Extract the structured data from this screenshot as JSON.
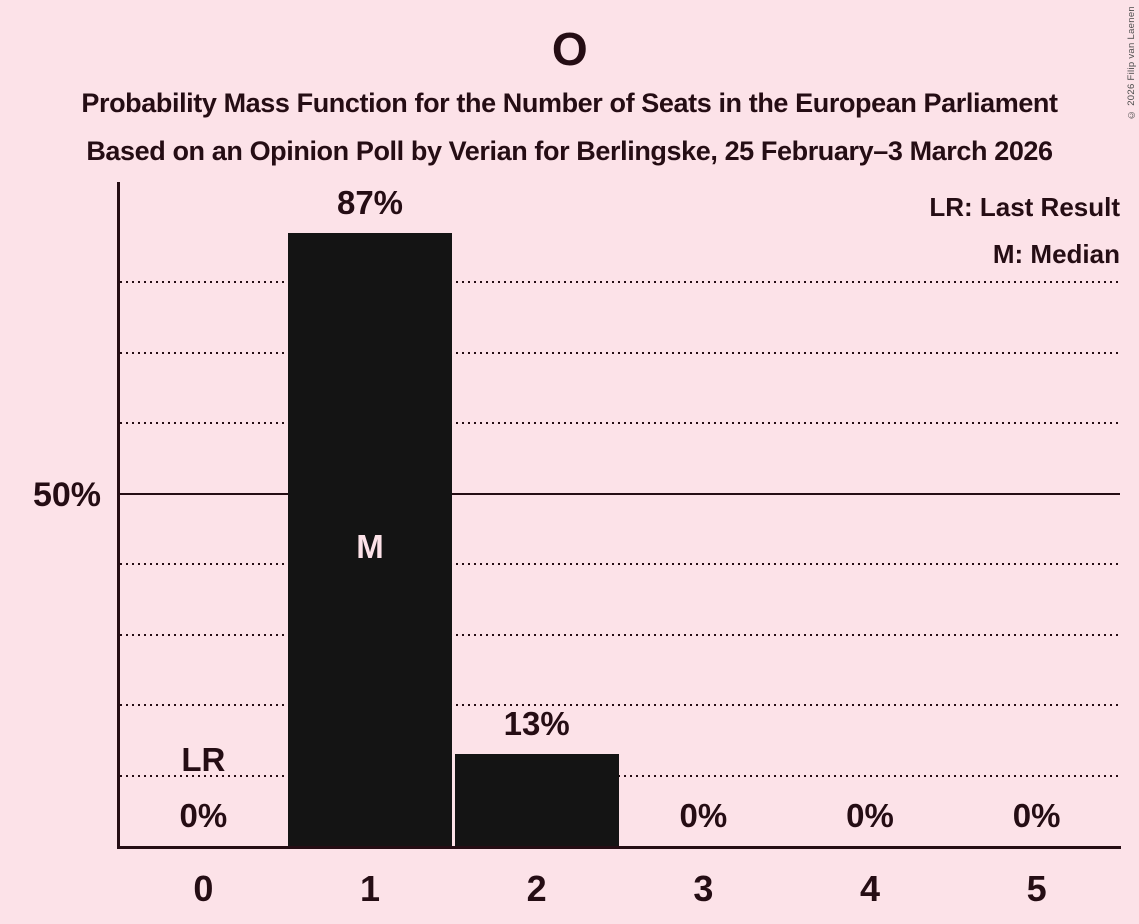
{
  "title": "O",
  "subtitle_line1": "Probability Mass Function for the Number of Seats in the European Parliament",
  "subtitle_line2": "Based on an Opinion Poll by Verian for Berlingske, 25 February–3 March 2026",
  "copyright": "© 2026 Filip van Laenen",
  "legend": {
    "lr": "LR: Last Result",
    "m": "M: Median"
  },
  "y_axis": {
    "tick_label": "50%"
  },
  "chart_data": {
    "type": "bar",
    "title": "O",
    "xlabel": "",
    "ylabel": "",
    "categories": [
      "0",
      "1",
      "2",
      "3",
      "4",
      "5"
    ],
    "values": [
      0,
      87,
      13,
      0,
      0,
      0
    ],
    "value_labels": [
      "0%",
      "87%",
      "13%",
      "0%",
      "0%",
      "0%"
    ],
    "ylim": [
      0,
      94
    ],
    "grid": "horizontal",
    "solid_gridline_percent": 50,
    "dotted_gridlines_percent": [
      10,
      20,
      30,
      40,
      60,
      70,
      80
    ],
    "legend_position": "top-right",
    "annotations": {
      "last_result": {
        "label": "LR",
        "category": "0"
      },
      "median": {
        "label": "M",
        "category": "1"
      }
    },
    "colors": {
      "background": "#fce2e8",
      "bar": "#141414",
      "text": "#250d14",
      "median_label": "#fce2e8",
      "copyright": "#4d4d4d"
    }
  }
}
